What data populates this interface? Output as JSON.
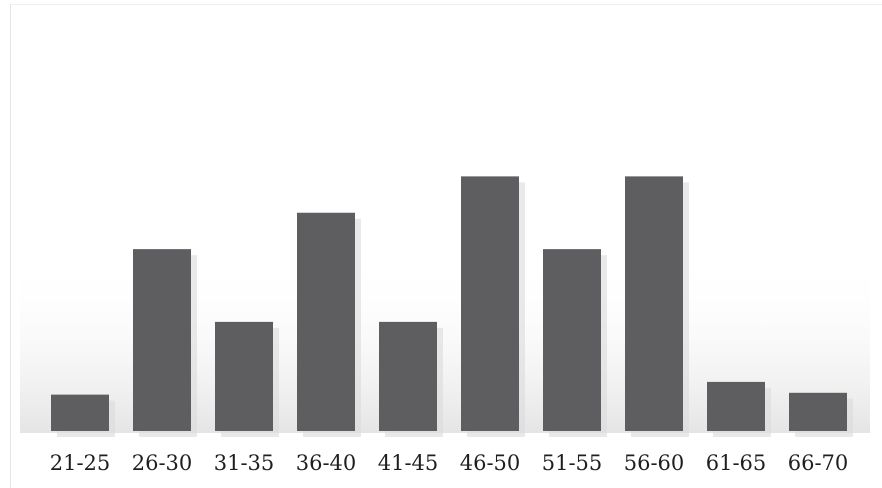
{
  "chart_data": {
    "type": "bar",
    "title": "",
    "xlabel": "",
    "ylabel": "",
    "categories": [
      "21-25",
      "26-30",
      "31-35",
      "36-40",
      "41-45",
      "46-50",
      "51-55",
      "56-60",
      "61-65",
      "66-70"
    ],
    "values": [
      2,
      10,
      6,
      12,
      6,
      14,
      10,
      14,
      2.7,
      2.1
    ],
    "ylim": [
      0,
      16
    ],
    "grid": false,
    "legend": "none",
    "colors": {
      "bar": "#5e5e60",
      "shadow": "#dadada",
      "text": "#1f1f1f"
    }
  }
}
